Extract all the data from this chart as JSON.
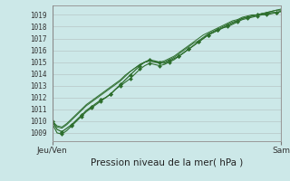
{
  "title": "Pression niveau de la mer( hPa )",
  "xlabel_left": "Jeu/Ven",
  "xlabel_right": "Sam",
  "ylabel_ticks": [
    1009,
    1010,
    1011,
    1012,
    1013,
    1014,
    1015,
    1016,
    1017,
    1018,
    1019
  ],
  "ylim": [
    1008.3,
    1019.8
  ],
  "xlim": [
    0,
    47
  ],
  "bg_color": "#cce8e8",
  "plot_bg_color": "#cce8e8",
  "grid_color": "#bbcccc",
  "line_color": "#2d6e2d",
  "marker_color": "#2d6e2d",
  "border_color": "#999999",
  "figsize": [
    3.2,
    2.0
  ],
  "dpi": 100,
  "series1": [
    1010.0,
    1009.3,
    1009.1,
    1009.4,
    1009.7,
    1010.1,
    1010.5,
    1010.9,
    1011.2,
    1011.5,
    1011.8,
    1012.0,
    1012.3,
    1012.7,
    1013.1,
    1013.5,
    1013.9,
    1014.3,
    1014.7,
    1015.0,
    1015.2,
    1015.1,
    1015.0,
    1014.9,
    1015.1,
    1015.3,
    1015.5,
    1015.8,
    1016.1,
    1016.4,
    1016.7,
    1017.0,
    1017.3,
    1017.5,
    1017.7,
    1017.9,
    1018.1,
    1018.3,
    1018.5,
    1018.7,
    1018.8,
    1018.9,
    1019.0,
    1019.1,
    1019.1,
    1019.2,
    1019.2,
    1019.3
  ],
  "series2": [
    1009.8,
    1009.0,
    1008.9,
    1009.2,
    1009.6,
    1010.0,
    1010.4,
    1010.8,
    1011.1,
    1011.4,
    1011.7,
    1012.0,
    1012.3,
    1012.7,
    1013.0,
    1013.3,
    1013.6,
    1014.0,
    1014.4,
    1014.7,
    1014.9,
    1014.8,
    1014.7,
    1014.8,
    1015.0,
    1015.2,
    1015.5,
    1015.8,
    1016.1,
    1016.4,
    1016.7,
    1017.0,
    1017.3,
    1017.5,
    1017.7,
    1017.9,
    1018.0,
    1018.2,
    1018.4,
    1018.6,
    1018.7,
    1018.8,
    1018.9,
    1019.0,
    1019.0,
    1019.1,
    1019.2,
    1019.3
  ],
  "series3": [
    1009.9,
    1009.5,
    1009.4,
    1009.7,
    1010.1,
    1010.5,
    1010.9,
    1011.3,
    1011.6,
    1011.9,
    1012.2,
    1012.5,
    1012.8,
    1013.1,
    1013.4,
    1013.8,
    1014.2,
    1014.5,
    1014.8,
    1015.0,
    1015.1,
    1015.0,
    1014.9,
    1015.0,
    1015.2,
    1015.4,
    1015.7,
    1016.0,
    1016.3,
    1016.6,
    1016.8,
    1017.1,
    1017.4,
    1017.6,
    1017.8,
    1018.0,
    1018.2,
    1018.4,
    1018.5,
    1018.7,
    1018.8,
    1018.9,
    1019.0,
    1019.1,
    1019.2,
    1019.3,
    1019.4,
    1019.4
  ],
  "series4": [
    1010.0,
    1009.6,
    1009.5,
    1009.8,
    1010.2,
    1010.6,
    1011.0,
    1011.4,
    1011.7,
    1012.0,
    1012.3,
    1012.6,
    1012.9,
    1013.2,
    1013.5,
    1013.9,
    1014.2,
    1014.5,
    1014.8,
    1015.0,
    1015.1,
    1015.0,
    1015.0,
    1015.1,
    1015.3,
    1015.5,
    1015.8,
    1016.1,
    1016.4,
    1016.7,
    1017.0,
    1017.3,
    1017.5,
    1017.7,
    1017.9,
    1018.1,
    1018.3,
    1018.5,
    1018.6,
    1018.8,
    1018.9,
    1019.0,
    1019.0,
    1019.1,
    1019.2,
    1019.3,
    1019.4,
    1019.5
  ]
}
